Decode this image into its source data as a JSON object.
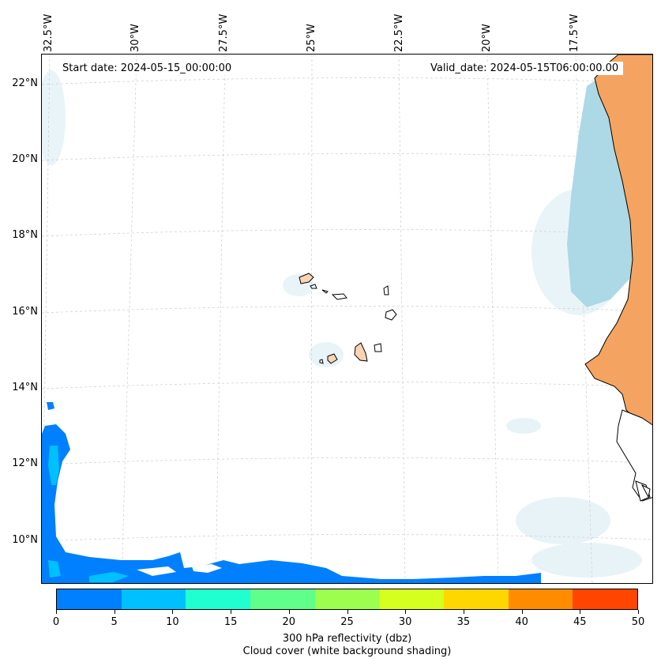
{
  "map": {
    "start_date": "Start date: 2024-05-15_00:00:00",
    "valid_date": "Valid_date: 2024-05-15T06:00:00.00",
    "lon_labels": [
      "32.5°W",
      "30°W",
      "27.5°W",
      "25°W",
      "22.5°W",
      "20°W",
      "17.5°W"
    ],
    "lat_labels": [
      "22°N",
      "20°N",
      "18°N",
      "16°N",
      "14°N",
      "12°N",
      "10°N"
    ],
    "colors": {
      "land": "#f4a460",
      "cloud": "#add8e6",
      "reflectivity_low": "#0080ff",
      "reflectivity_mid": "#00c0ff",
      "gridline": "#cccccc",
      "island_fill": "#f8d4b4"
    }
  },
  "colorbar": {
    "ticks": [
      "0",
      "5",
      "10",
      "15",
      "20",
      "25",
      "30",
      "35",
      "40",
      "45",
      "50"
    ],
    "colors": [
      "#0080ff",
      "#00c0ff",
      "#1fffd0",
      "#60ff8a",
      "#9cff4f",
      "#d4ff1f",
      "#ffd700",
      "#ff8c00",
      "#ff4500"
    ],
    "label_line1": "300 hPa reflectivity (dbz)",
    "label_line2": "Cloud cover (white background shading)"
  }
}
